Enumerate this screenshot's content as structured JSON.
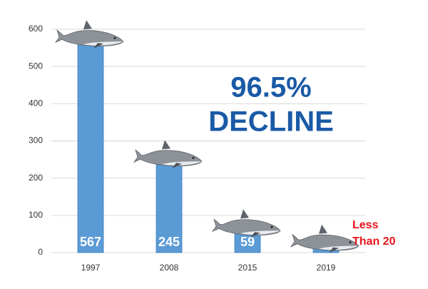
{
  "chart_data": {
    "type": "bar",
    "categories": [
      "1997",
      "2008",
      "2015",
      "2019"
    ],
    "values": [
      567,
      245,
      59,
      18
    ],
    "value_labels": [
      "567",
      "245",
      "59",
      null
    ],
    "color": "#5b9bd5",
    "ylim": [
      0,
      600
    ],
    "yticks": [
      0,
      100,
      200,
      300,
      400,
      500,
      600
    ],
    "grid": true,
    "annotations": [
      {
        "lines": [
          "96.5%",
          "DECLINE"
        ],
        "color": "#1a5aa6"
      },
      {
        "lines": [
          "Less",
          "Than 20"
        ],
        "color": "#e8141a"
      }
    ]
  }
}
